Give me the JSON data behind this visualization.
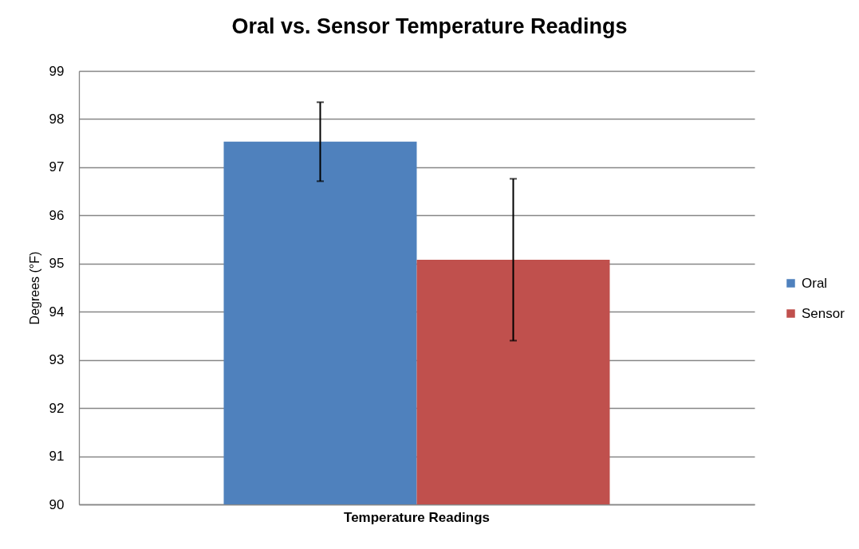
{
  "chart_data": {
    "type": "bar",
    "title": "Oral vs. Sensor Temperature Readings",
    "ylabel": "Degrees (°F)",
    "categories": [
      "Temperature Readings"
    ],
    "series": [
      {
        "name": "Oral",
        "color": "#4f81bd",
        "values": [
          97.53
        ],
        "errors": [
          0.82
        ]
      },
      {
        "name": "Sensor",
        "color": "#c0504d",
        "values": [
          95.08
        ],
        "errors": [
          1.68
        ]
      }
    ],
    "ylim": [
      90,
      99
    ],
    "yticks": [
      90,
      91,
      92,
      93,
      94,
      95,
      96,
      97,
      98,
      99
    ],
    "grid": "y",
    "legend": "right"
  }
}
